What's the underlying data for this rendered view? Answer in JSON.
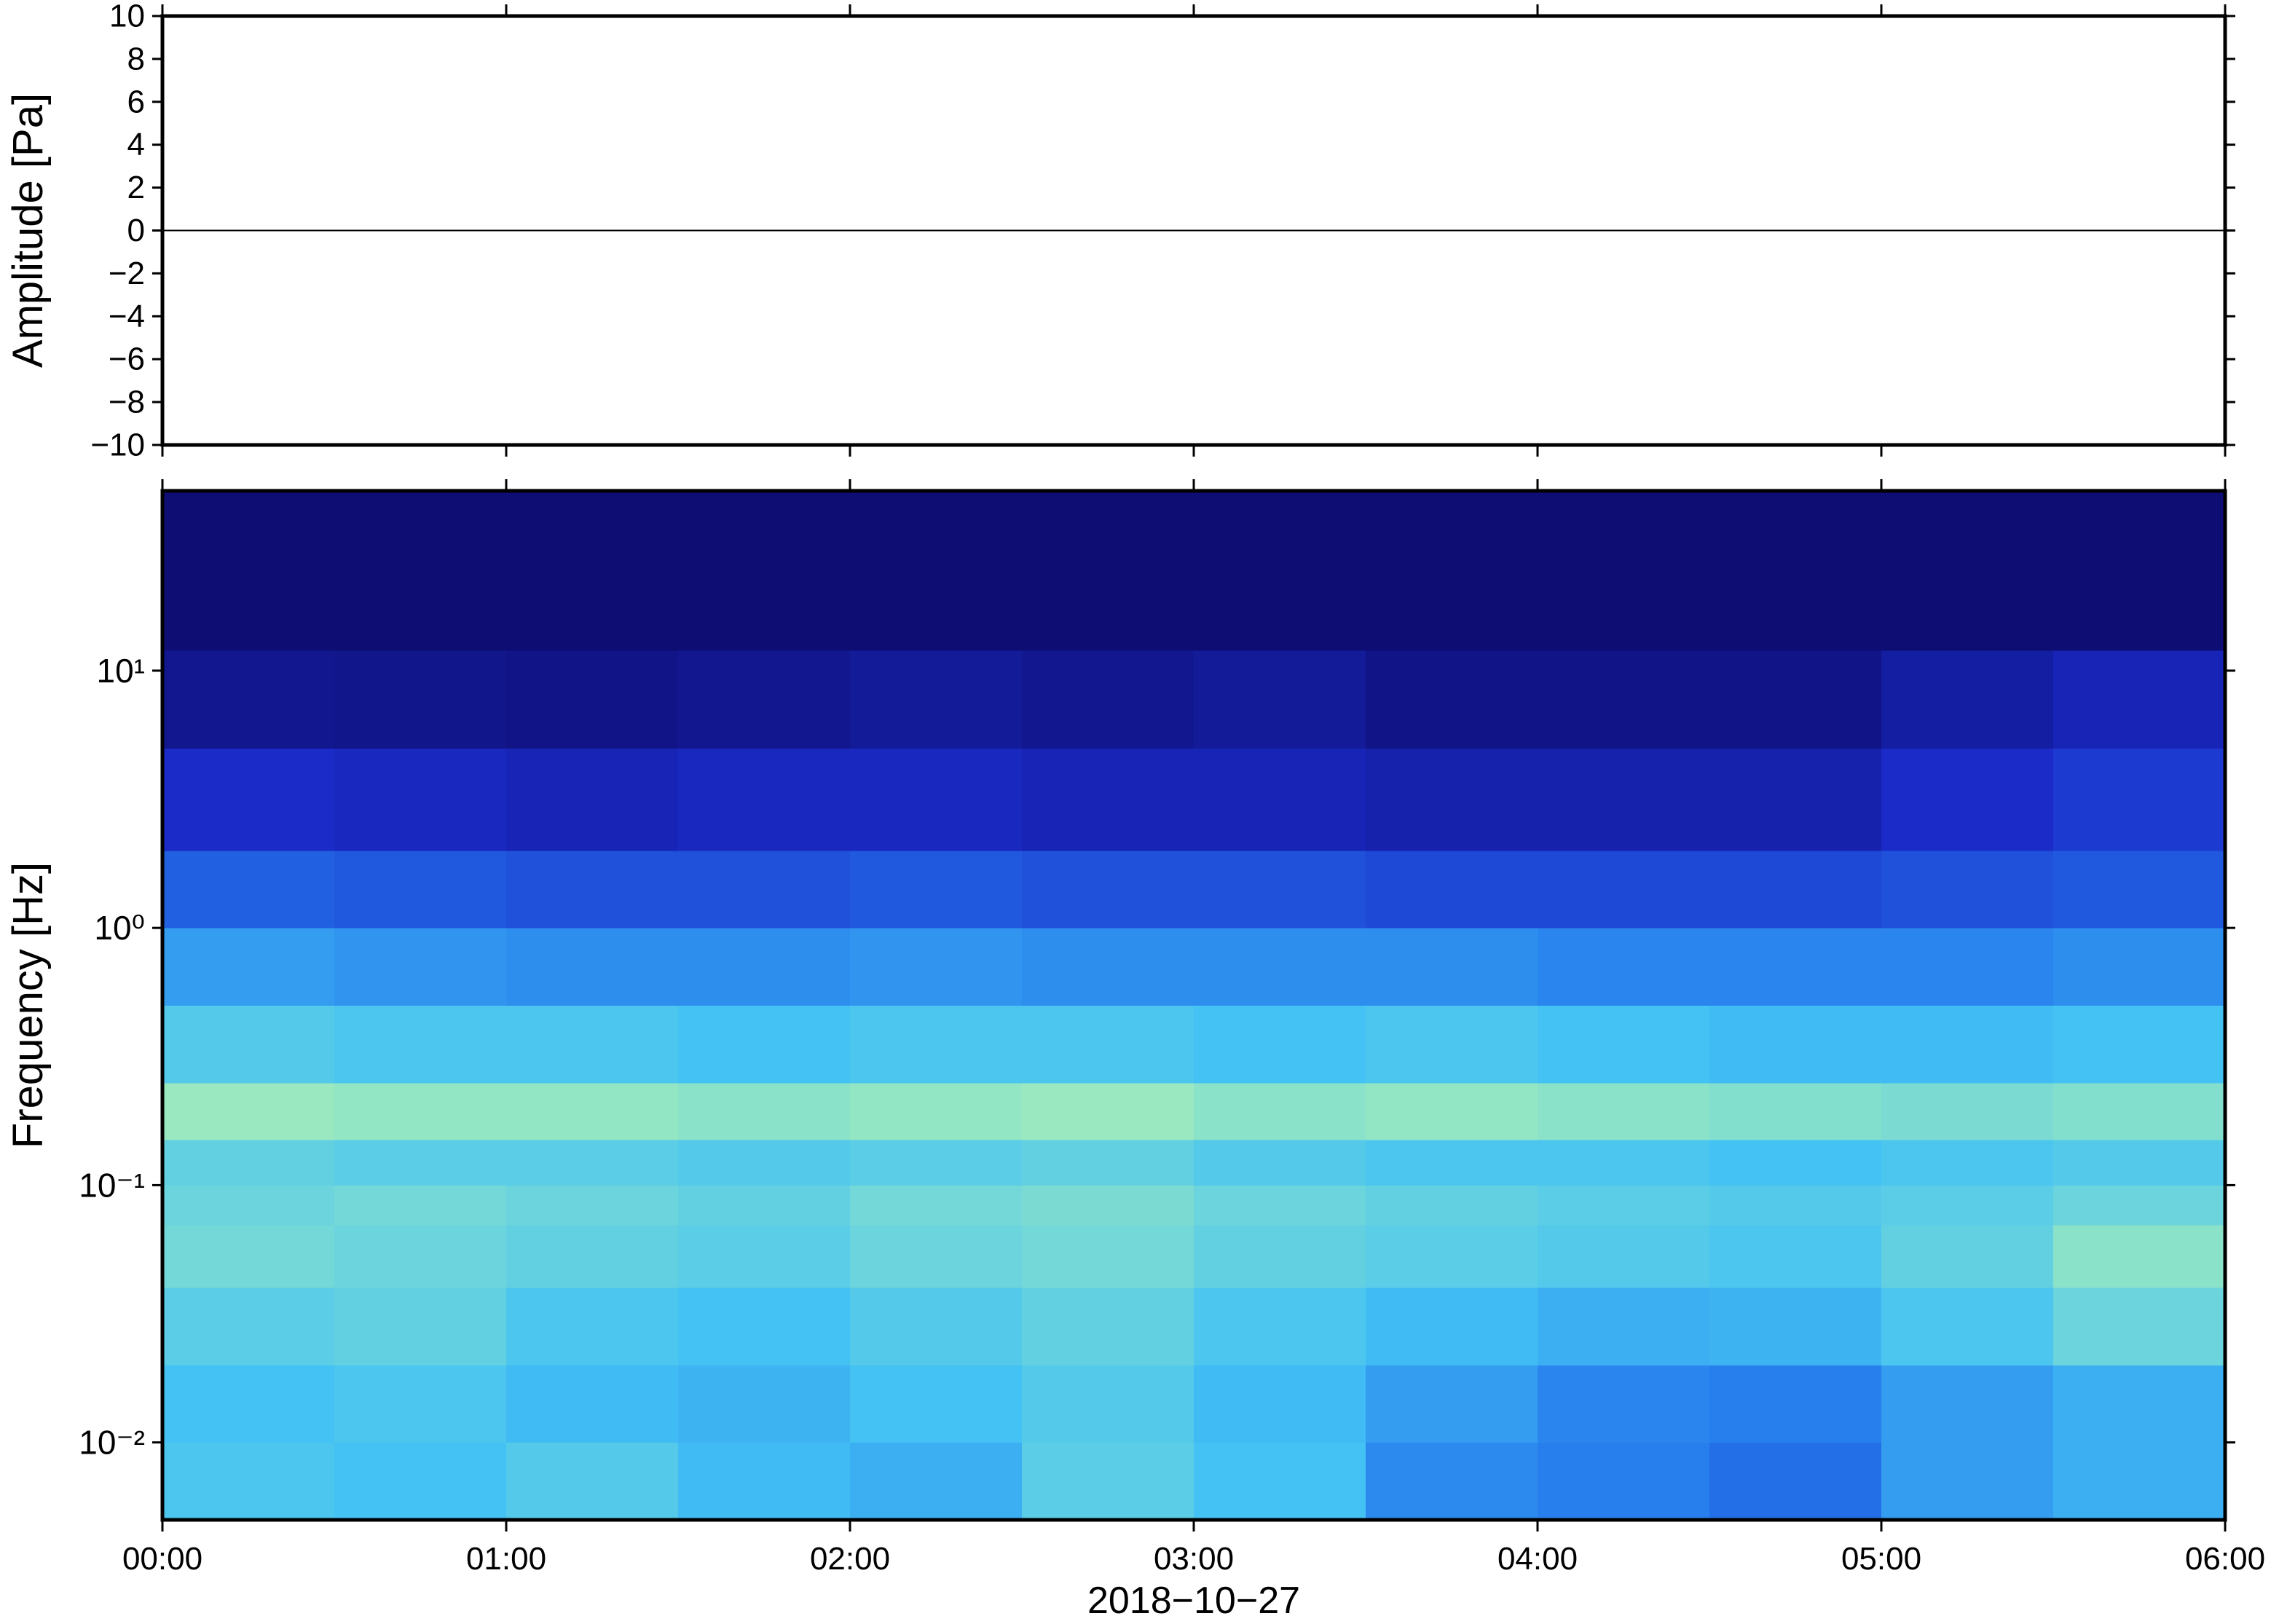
{
  "chart_data": [
    {
      "type": "line",
      "y_label": "Amplitude [Pa]",
      "x": [
        0,
        6
      ],
      "values": [
        0,
        0
      ],
      "color": "#000000",
      "xlim": [
        0,
        6
      ],
      "ylim": [
        -10,
        10
      ],
      "yticks": [
        {
          "value": -10,
          "label": "−10"
        },
        {
          "value": -8,
          "label": "−8"
        },
        {
          "value": -6,
          "label": "−6"
        },
        {
          "value": -4,
          "label": "−4"
        },
        {
          "value": -2,
          "label": "−2"
        },
        0,
        2,
        4,
        6,
        8,
        10
      ]
    },
    {
      "type": "heatmap",
      "y_label": "Frequency [Hz]",
      "x_label": "2018−10−27",
      "xlim": [
        0,
        6
      ],
      "xticks": [
        {
          "value": 0,
          "label": "00:00"
        },
        {
          "value": 1,
          "label": "01:00"
        },
        {
          "value": 2,
          "label": "02:00"
        },
        {
          "value": 3,
          "label": "03:00"
        },
        {
          "value": 4,
          "label": "04:00"
        },
        {
          "value": 5,
          "label": "05:00"
        },
        {
          "value": 6,
          "label": "06:00"
        }
      ],
      "ylim": [
        0.005,
        50
      ],
      "yscale": "log",
      "yticks": [
        {
          "value": 0.01,
          "label": "10⁻²"
        },
        {
          "value": 0.1,
          "label": "10⁻¹"
        },
        {
          "value": 1,
          "label": "10⁰"
        },
        {
          "value": 10,
          "label": "10¹"
        }
      ],
      "colormap": [
        "#0c0a6a",
        "#1a2bc8",
        "#2477ec",
        "#44c2f4",
        "#92e6c4",
        "#e4f89c"
      ],
      "x_bins": [
        0,
        0.5,
        1,
        1.5,
        2,
        2.5,
        3,
        3.5,
        4,
        4.5,
        5,
        5.5,
        6
      ],
      "y_bins": [
        0.005,
        0.01,
        0.02,
        0.04,
        0.07,
        0.1,
        0.15,
        0.25,
        0.5,
        1,
        2,
        5,
        12,
        50
      ],
      "z": [
        [
          0.62,
          0.6,
          0.64,
          0.58,
          0.55,
          0.66,
          0.6,
          0.45,
          0.42,
          0.38,
          0.5,
          0.55
        ],
        [
          0.6,
          0.62,
          0.58,
          0.56,
          0.6,
          0.64,
          0.58,
          0.5,
          0.44,
          0.42,
          0.5,
          0.55
        ],
        [
          0.66,
          0.68,
          0.62,
          0.6,
          0.64,
          0.68,
          0.62,
          0.58,
          0.55,
          0.56,
          0.62,
          0.7
        ],
        [
          0.72,
          0.7,
          0.68,
          0.66,
          0.7,
          0.72,
          0.68,
          0.66,
          0.64,
          0.62,
          0.68,
          0.78
        ],
        [
          0.7,
          0.72,
          0.7,
          0.68,
          0.72,
          0.74,
          0.7,
          0.68,
          0.66,
          0.64,
          0.66,
          0.7
        ],
        [
          0.68,
          0.66,
          0.66,
          0.64,
          0.66,
          0.68,
          0.64,
          0.62,
          0.62,
          0.6,
          0.62,
          0.64
        ],
        [
          0.82,
          0.8,
          0.8,
          0.78,
          0.8,
          0.82,
          0.78,
          0.8,
          0.78,
          0.76,
          0.74,
          0.76
        ],
        [
          0.64,
          0.62,
          0.62,
          0.6,
          0.62,
          0.62,
          0.6,
          0.62,
          0.6,
          0.58,
          0.58,
          0.6
        ],
        [
          0.5,
          0.48,
          0.46,
          0.46,
          0.48,
          0.46,
          0.46,
          0.46,
          0.44,
          0.44,
          0.44,
          0.46
        ],
        [
          0.34,
          0.32,
          0.3,
          0.3,
          0.32,
          0.3,
          0.3,
          0.28,
          0.28,
          0.28,
          0.3,
          0.32
        ],
        [
          0.2,
          0.18,
          0.16,
          0.18,
          0.18,
          0.16,
          0.16,
          0.14,
          0.14,
          0.14,
          0.2,
          0.24
        ],
        [
          0.08,
          0.07,
          0.06,
          0.08,
          0.1,
          0.08,
          0.1,
          0.06,
          0.06,
          0.06,
          0.12,
          0.16
        ],
        [
          0.02,
          0.02,
          0.02,
          0.02,
          0.02,
          0.02,
          0.02,
          0.02,
          0.02,
          0.02,
          0.02,
          0.02
        ]
      ]
    }
  ]
}
